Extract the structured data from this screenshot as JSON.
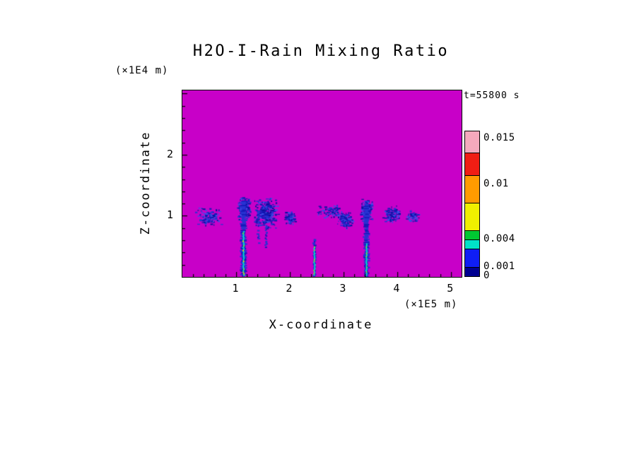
{
  "page": {
    "background": "#ffffff"
  },
  "chart_data": {
    "type": "heatmap",
    "title": "H2O-I-Rain Mixing Ratio",
    "timestamp": "t=55800 s",
    "xlabel": "X-coordinate",
    "x_unit": "(×1E5 m)",
    "ylabel": "Z-coordinate",
    "y_unit": "(×1E4 m)",
    "xlim": [
      0,
      5.2
    ],
    "zlim": [
      0,
      3.05
    ],
    "x_ticks": [
      1,
      2,
      3,
      4,
      5
    ],
    "z_ticks": [
      1,
      2
    ],
    "grid": "off",
    "legend_position": "right-colorbar",
    "background_value_color": "#c800c8",
    "rain_palette": [
      "#2832d2",
      "#141ab9",
      "#3e4ce8",
      "#0a10a0"
    ],
    "core_colors": [
      "#00e6c8",
      "#6ef03c",
      "#e8f000"
    ],
    "colorbar": {
      "vmin": 0,
      "vmax": 0.0158,
      "labels": [
        {
          "value": 0.015,
          "text": "0.015"
        },
        {
          "value": 0.01,
          "text": "0.01"
        },
        {
          "value": 0.004,
          "text": "0.004"
        },
        {
          "value": 0.001,
          "text": "0.001"
        },
        {
          "value": 0,
          "text": "0"
        }
      ],
      "segments": [
        {
          "from": 0,
          "to": 0.001,
          "color": "#000091"
        },
        {
          "from": 0.001,
          "to": 0.003,
          "color": "#0f1ef5"
        },
        {
          "from": 0.003,
          "to": 0.004,
          "color": "#00e1c8"
        },
        {
          "from": 0.004,
          "to": 0.005,
          "color": "#00c832"
        },
        {
          "from": 0.005,
          "to": 0.008,
          "color": "#f0f000"
        },
        {
          "from": 0.008,
          "to": 0.011,
          "color": "#ff9b00"
        },
        {
          "from": 0.011,
          "to": 0.0135,
          "color": "#f01e14"
        },
        {
          "from": 0.0135,
          "to": 0.0158,
          "color": "#f5a9bd"
        }
      ]
    },
    "features": [
      {
        "type": "speckle",
        "x0": 0.25,
        "x1": 0.75,
        "z0": 0.82,
        "z1": 1.15,
        "density": 0.35
      },
      {
        "type": "speckle",
        "x0": 1.02,
        "x1": 1.28,
        "z0": 0.92,
        "z1": 1.32,
        "density": 0.85
      },
      {
        "type": "column",
        "xc": 1.14,
        "w": 0.09,
        "z0": 0.0,
        "z1": 1.25,
        "density": 1.0,
        "core": true,
        "core_z1": 0.75
      },
      {
        "type": "speckle",
        "x0": 1.3,
        "x1": 1.8,
        "z0": 0.78,
        "z1": 1.3,
        "density": 0.55
      },
      {
        "type": "column",
        "xc": 1.42,
        "w": 0.035,
        "z0": 0.55,
        "z1": 1.1,
        "density": 0.7,
        "core": false,
        "core_z1": 0
      },
      {
        "type": "column",
        "xc": 1.56,
        "w": 0.03,
        "z0": 0.45,
        "z1": 1.05,
        "density": 0.6,
        "core": false,
        "core_z1": 0
      },
      {
        "type": "speckle",
        "x0": 1.9,
        "x1": 2.12,
        "z0": 0.84,
        "z1": 1.06,
        "density": 0.7
      },
      {
        "type": "column",
        "xc": 2.46,
        "w": 0.04,
        "z0": 0.0,
        "z1": 0.62,
        "density": 0.9,
        "core": true,
        "core_z1": 0.5
      },
      {
        "type": "speckle",
        "x0": 2.5,
        "x1": 3.12,
        "z0": 0.95,
        "z1": 1.18,
        "density": 0.3
      },
      {
        "type": "speckle",
        "x0": 2.88,
        "x1": 3.18,
        "z0": 0.78,
        "z1": 1.06,
        "density": 0.7
      },
      {
        "type": "speckle",
        "x0": 3.32,
        "x1": 3.55,
        "z0": 0.88,
        "z1": 1.28,
        "density": 0.85
      },
      {
        "type": "column",
        "xc": 3.43,
        "w": 0.08,
        "z0": 0.0,
        "z1": 1.2,
        "density": 1.0,
        "core": true,
        "core_z1": 0.55
      },
      {
        "type": "speckle",
        "x0": 3.74,
        "x1": 4.06,
        "z0": 0.85,
        "z1": 1.16,
        "density": 0.5
      },
      {
        "type": "speckle",
        "x0": 4.16,
        "x1": 4.46,
        "z0": 0.88,
        "z1": 1.1,
        "density": 0.4
      }
    ]
  }
}
